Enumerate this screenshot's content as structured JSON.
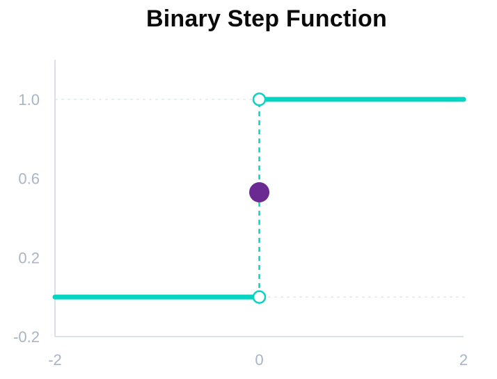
{
  "chart_data": {
    "type": "line",
    "title": "Binary Step Function",
    "xlabel": "",
    "ylabel": "",
    "xlim": [
      -2,
      2
    ],
    "ylim": [
      -0.2,
      1.2
    ],
    "x_ticks": [
      -2,
      0,
      2
    ],
    "x_tick_labels": [
      "-2",
      "0",
      "2"
    ],
    "y_ticks": [
      -0.2,
      0.2,
      0.6,
      1.0
    ],
    "y_tick_labels": [
      "-0.2",
      "0.2",
      "0.6",
      "1.0"
    ],
    "grid": false,
    "reference_lines": [
      0,
      1
    ],
    "series": [
      {
        "x": [
          -2,
          0
        ],
        "y": [
          0,
          0
        ]
      },
      {
        "x": [
          0,
          2
        ],
        "y": [
          1,
          1
        ]
      }
    ],
    "discontinuity": {
      "x": 0,
      "y_from": 0,
      "y_to": 1
    },
    "open_points": [
      {
        "x": 0,
        "y": 0
      },
      {
        "x": 0,
        "y": 1
      }
    ],
    "highlight_point": {
      "x": 0,
      "y": 0.53
    },
    "colors": {
      "line": "#05d4c2",
      "highlight": "#6a2a91",
      "axis": "#cfd5dd",
      "reference": "#e4e8ee",
      "tick_label": "#a9b4c4"
    }
  }
}
